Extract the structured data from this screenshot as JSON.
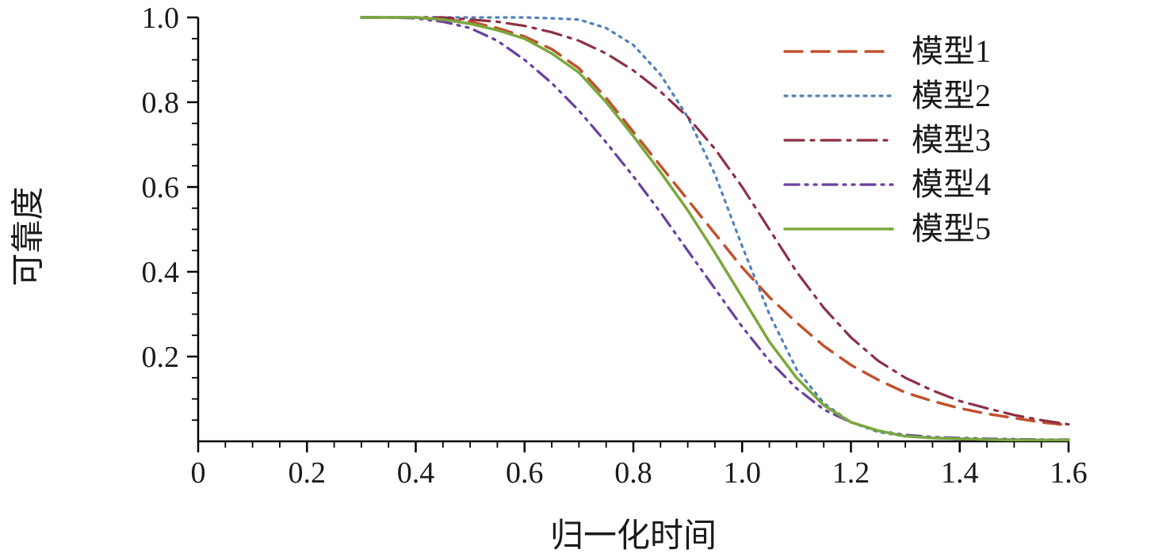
{
  "chart_data": {
    "type": "line",
    "title": "",
    "xlabel": "归一化时间",
    "ylabel": "可靠度",
    "xlim": [
      0,
      1.6
    ],
    "ylim": [
      0,
      1.0
    ],
    "x_tick_step": 0.2,
    "x_tick_labels": [
      "0",
      "0.2",
      "0.4",
      "0.6",
      "0.8",
      "1.0",
      "1.2",
      "1.4",
      "1.6"
    ],
    "y_ticks": [
      0.2,
      0.4,
      0.6,
      0.8,
      1.0
    ],
    "y_tick_labels": [
      "0.2",
      "0.4",
      "0.6",
      "0.8",
      "1.0"
    ],
    "minor_tick_step": 0.05,
    "grid": false,
    "legend_position": "upper right",
    "axis_color": "#000000",
    "x": [
      0.3,
      0.35,
      0.4,
      0.45,
      0.5,
      0.55,
      0.6,
      0.65,
      0.7,
      0.75,
      0.8,
      0.85,
      0.9,
      0.95,
      1.0,
      1.05,
      1.1,
      1.15,
      1.2,
      1.25,
      1.3,
      1.35,
      1.4,
      1.45,
      1.5,
      1.55,
      1.6
    ],
    "series": [
      {
        "name": "模型1",
        "color": "#c2512f",
        "dash": "22 12",
        "width": 3.5,
        "values": [
          1.0,
          1.0,
          1.0,
          0.995,
          0.99,
          0.975,
          0.955,
          0.925,
          0.88,
          0.81,
          0.73,
          0.65,
          0.57,
          0.49,
          0.41,
          0.34,
          0.28,
          0.225,
          0.18,
          0.145,
          0.115,
          0.095,
          0.078,
          0.065,
          0.055,
          0.045,
          0.038
        ]
      },
      {
        "name": "模型2",
        "color": "#4f81bd",
        "dash": "3 7",
        "width": 3.2,
        "values": [
          1.0,
          1.0,
          1.0,
          1.0,
          1.0,
          1.0,
          1.0,
          0.998,
          0.995,
          0.975,
          0.935,
          0.865,
          0.765,
          0.63,
          0.46,
          0.3,
          0.17,
          0.09,
          0.045,
          0.022,
          0.012,
          0.008,
          0.006,
          0.005,
          0.004,
          0.004,
          0.003
        ]
      },
      {
        "name": "模型3",
        "color": "#8e3044",
        "dash": "24 9 4 9",
        "width": 3.2,
        "values": [
          1.0,
          1.0,
          1.0,
          1.0,
          0.995,
          0.99,
          0.98,
          0.965,
          0.945,
          0.915,
          0.875,
          0.825,
          0.765,
          0.69,
          0.6,
          0.5,
          0.4,
          0.315,
          0.245,
          0.19,
          0.15,
          0.12,
          0.095,
          0.078,
          0.062,
          0.05,
          0.04
        ]
      },
      {
        "name": "模型4",
        "color": "#6a3fa0",
        "dash": "18 8 3 8 3 8",
        "width": 3.2,
        "values": [
          1.0,
          1.0,
          0.998,
          0.99,
          0.975,
          0.945,
          0.9,
          0.845,
          0.78,
          0.705,
          0.625,
          0.54,
          0.45,
          0.36,
          0.27,
          0.19,
          0.125,
          0.075,
          0.045,
          0.025,
          0.015,
          0.01,
          0.008,
          0.006,
          0.005,
          0.004,
          0.004
        ]
      },
      {
        "name": "模型5",
        "color": "#7aa83d",
        "dash": "",
        "width": 3.5,
        "values": [
          1.0,
          1.0,
          1.0,
          0.995,
          0.985,
          0.97,
          0.95,
          0.915,
          0.87,
          0.8,
          0.72,
          0.635,
          0.545,
          0.445,
          0.34,
          0.235,
          0.15,
          0.085,
          0.045,
          0.025,
          0.012,
          0.008,
          0.006,
          0.004,
          0.003,
          0.003,
          0.003
        ]
      }
    ]
  }
}
